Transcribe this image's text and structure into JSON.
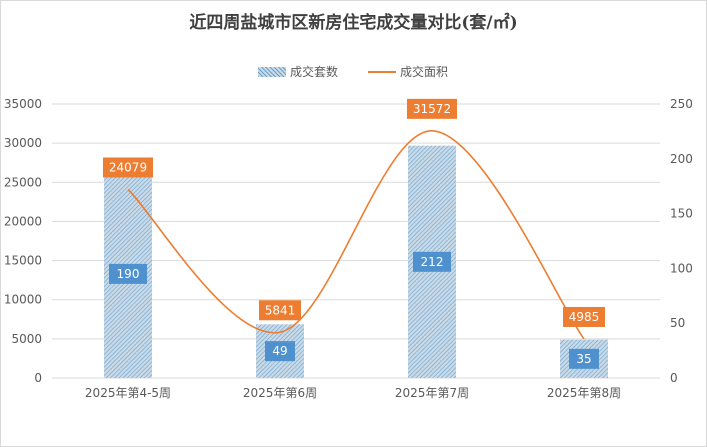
{
  "chart_data": {
    "type": "bar",
    "title": "近四周盐城市区新房住宅成交量对比(套/㎡)",
    "categories": [
      "2025年第4-5周",
      "2025年第6周",
      "2025年第7周",
      "2025年第8周"
    ],
    "series": [
      {
        "name": "成交套数",
        "type": "bar",
        "axis": "right",
        "values": [
          190,
          49,
          212,
          35
        ]
      },
      {
        "name": "成交面积",
        "type": "line",
        "smooth": true,
        "axis": "left",
        "values": [
          24079,
          5841,
          31572,
          4985
        ]
      }
    ],
    "y_left": {
      "min": 0,
      "max": 35000,
      "ticks": [
        0,
        5000,
        10000,
        15000,
        20000,
        25000,
        30000,
        35000
      ]
    },
    "y_right": {
      "min": 0,
      "max": 250,
      "ticks": [
        0,
        50,
        100,
        150,
        200,
        250
      ]
    },
    "grid": true,
    "legend_position": "top"
  },
  "colors": {
    "bar_fill": "#c9dbe9",
    "bar_hatch": "#6f9fc6",
    "bar_label_bg": "#4f91cf",
    "line": "#ed7d31",
    "line_label_bg": "#ed7d31",
    "grid": "#d9d9d9",
    "text": "#595959"
  }
}
